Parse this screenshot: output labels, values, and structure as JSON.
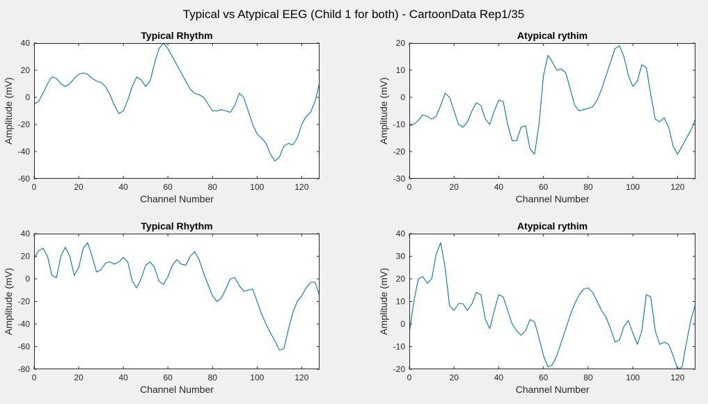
{
  "figure": {
    "title": "Typical vs Atypical EEG (Child 1 for both) - CartoonData Rep1/35",
    "line_color": "#0072bd",
    "axes_color": "#262626",
    "background": "#f0f0f0",
    "plot_background": "#ffffff"
  },
  "chart_data": [
    {
      "type": "line",
      "title": "Typical Rhythm",
      "xlabel": "Channel Number",
      "ylabel": "Amplitude (mV)",
      "xlim": [
        0,
        128
      ],
      "ylim": [
        -60,
        40
      ],
      "xticks": [
        0,
        20,
        40,
        60,
        80,
        100,
        120
      ],
      "yticks": [
        -60,
        -40,
        -20,
        0,
        20,
        40
      ],
      "grid": false,
      "series": [
        {
          "x": [
            0,
            2,
            4,
            6,
            8,
            10,
            12,
            14,
            16,
            18,
            20,
            22,
            24,
            26,
            28,
            30,
            32,
            34,
            36,
            38,
            40,
            42,
            44,
            46,
            48,
            50,
            52,
            54,
            56,
            58,
            60,
            62,
            64,
            66,
            68,
            70,
            72,
            74,
            76,
            78,
            80,
            82,
            84,
            86,
            88,
            90,
            92,
            94,
            96,
            98,
            100,
            102,
            104,
            106,
            108,
            110,
            112,
            114,
            116,
            118,
            120,
            122,
            124,
            126,
            128
          ],
          "y": [
            -5,
            -3,
            3,
            10,
            15,
            14,
            10,
            8,
            10,
            14,
            17,
            18,
            17,
            14,
            12,
            11,
            8,
            2,
            -6,
            -12,
            -10,
            -2,
            8,
            15,
            13,
            8,
            12,
            25,
            36,
            40,
            36,
            30,
            24,
            18,
            12,
            6,
            3,
            2,
            0,
            -5,
            -10,
            -10,
            -9,
            -10,
            -11,
            -6,
            3,
            0,
            -10,
            -20,
            -27,
            -30,
            -34,
            -42,
            -47,
            -44,
            -36,
            -34,
            -35,
            -30,
            -20,
            -14,
            -11,
            -3,
            11
          ]
        }
      ]
    },
    {
      "type": "line",
      "title": "Atypical rythim",
      "xlabel": "Channel Number",
      "ylabel": "Amplitude (mV)",
      "xlim": [
        0,
        128
      ],
      "ylim": [
        -30,
        20
      ],
      "xticks": [
        0,
        20,
        40,
        60,
        80,
        100,
        120
      ],
      "yticks": [
        -30,
        -20,
        -10,
        0,
        10,
        20
      ],
      "grid": false,
      "series": [
        {
          "x": [
            0,
            2,
            4,
            6,
            8,
            10,
            12,
            14,
            16,
            18,
            20,
            22,
            24,
            26,
            28,
            30,
            32,
            34,
            36,
            38,
            40,
            42,
            44,
            46,
            48,
            50,
            52,
            54,
            56,
            58,
            60,
            62,
            64,
            66,
            68,
            70,
            72,
            74,
            76,
            78,
            80,
            82,
            84,
            86,
            88,
            90,
            92,
            94,
            96,
            98,
            100,
            102,
            104,
            106,
            108,
            110,
            112,
            114,
            116,
            118,
            120,
            122,
            124,
            126,
            128
          ],
          "y": [
            -10.5,
            -10,
            -8.5,
            -6.5,
            -7,
            -8,
            -7,
            -3,
            1.5,
            0,
            -5,
            -10,
            -11,
            -9,
            -5,
            -2,
            -3,
            -8,
            -10,
            -5,
            -1,
            -1.5,
            -10,
            -16,
            -16,
            -11,
            -10.5,
            -19,
            -21,
            -10,
            8,
            15.5,
            13,
            10,
            10.5,
            9,
            3,
            -3,
            -5,
            -4.5,
            -4,
            -3.5,
            -1,
            3,
            8,
            13,
            18,
            19,
            15,
            8,
            4,
            6,
            12,
            11,
            1,
            -8,
            -9,
            -7.5,
            -11,
            -18,
            -21,
            -18,
            -15,
            -12,
            -8
          ]
        }
      ]
    },
    {
      "type": "line",
      "title": "Typical Rhythm",
      "xlabel": "Channel Number",
      "ylabel": "Amplitude (mV)",
      "xlim": [
        0,
        128
      ],
      "ylim": [
        -80,
        40
      ],
      "xticks": [
        0,
        20,
        40,
        60,
        80,
        100,
        120
      ],
      "yticks": [
        -80,
        -60,
        -40,
        -20,
        0,
        20,
        40
      ],
      "grid": false,
      "series": [
        {
          "x": [
            0,
            2,
            4,
            6,
            8,
            10,
            12,
            14,
            16,
            18,
            20,
            22,
            24,
            26,
            28,
            30,
            32,
            34,
            36,
            38,
            40,
            42,
            44,
            46,
            48,
            50,
            52,
            54,
            56,
            58,
            60,
            62,
            64,
            66,
            68,
            70,
            72,
            74,
            76,
            78,
            80,
            82,
            84,
            86,
            88,
            90,
            92,
            94,
            96,
            98,
            100,
            102,
            104,
            106,
            108,
            110,
            112,
            114,
            116,
            118,
            120,
            122,
            124,
            126,
            128
          ],
          "y": [
            18,
            25,
            27,
            20,
            3,
            1,
            20,
            28,
            20,
            3,
            10,
            27,
            32,
            20,
            6,
            8,
            14,
            15,
            13,
            15,
            19,
            15,
            -2,
            -8,
            0,
            12,
            15,
            10,
            -2,
            -5,
            2,
            12,
            17,
            13,
            12,
            20,
            24,
            17,
            5,
            -5,
            -15,
            -20,
            -17,
            -9,
            0,
            1,
            -6,
            -11,
            -10,
            -9,
            -20,
            -31,
            -40,
            -48,
            -55,
            -63,
            -62,
            -45,
            -30,
            -20,
            -15,
            -8,
            -3,
            -3,
            -15
          ]
        }
      ]
    },
    {
      "type": "line",
      "title": "Atypical rythim",
      "xlabel": "Channel Number",
      "ylabel": "Amplitude (mV)",
      "xlim": [
        0,
        128
      ],
      "ylim": [
        -20,
        40
      ],
      "xticks": [
        0,
        20,
        40,
        60,
        80,
        100,
        120
      ],
      "yticks": [
        -20,
        -10,
        0,
        10,
        20,
        30,
        40
      ],
      "grid": false,
      "series": [
        {
          "x": [
            0,
            2,
            4,
            6,
            8,
            10,
            12,
            14,
            16,
            18,
            20,
            22,
            24,
            26,
            28,
            30,
            32,
            34,
            36,
            38,
            40,
            42,
            44,
            46,
            48,
            50,
            52,
            54,
            56,
            58,
            60,
            62,
            64,
            66,
            68,
            70,
            72,
            74,
            76,
            78,
            80,
            82,
            84,
            86,
            88,
            90,
            92,
            94,
            96,
            98,
            100,
            102,
            104,
            106,
            108,
            110,
            112,
            114,
            116,
            118,
            120,
            122,
            124,
            126,
            128
          ],
          "y": [
            -4,
            10,
            20,
            21,
            18,
            20,
            31,
            36,
            25,
            8,
            6,
            9,
            9,
            6,
            9,
            14,
            13,
            2,
            -2,
            6,
            13,
            12,
            6,
            0,
            -3,
            -5,
            -3,
            2,
            1,
            -6,
            -14,
            -19,
            -18,
            -14,
            -8,
            -2,
            4,
            9,
            13,
            15.5,
            16,
            14,
            10,
            6,
            3,
            -2,
            -8,
            -7,
            -1,
            1.5,
            -4,
            -9,
            -3,
            13,
            12,
            -3,
            -9,
            -8,
            -9,
            -14,
            -20,
            -19,
            -8,
            2,
            9
          ]
        }
      ]
    }
  ]
}
